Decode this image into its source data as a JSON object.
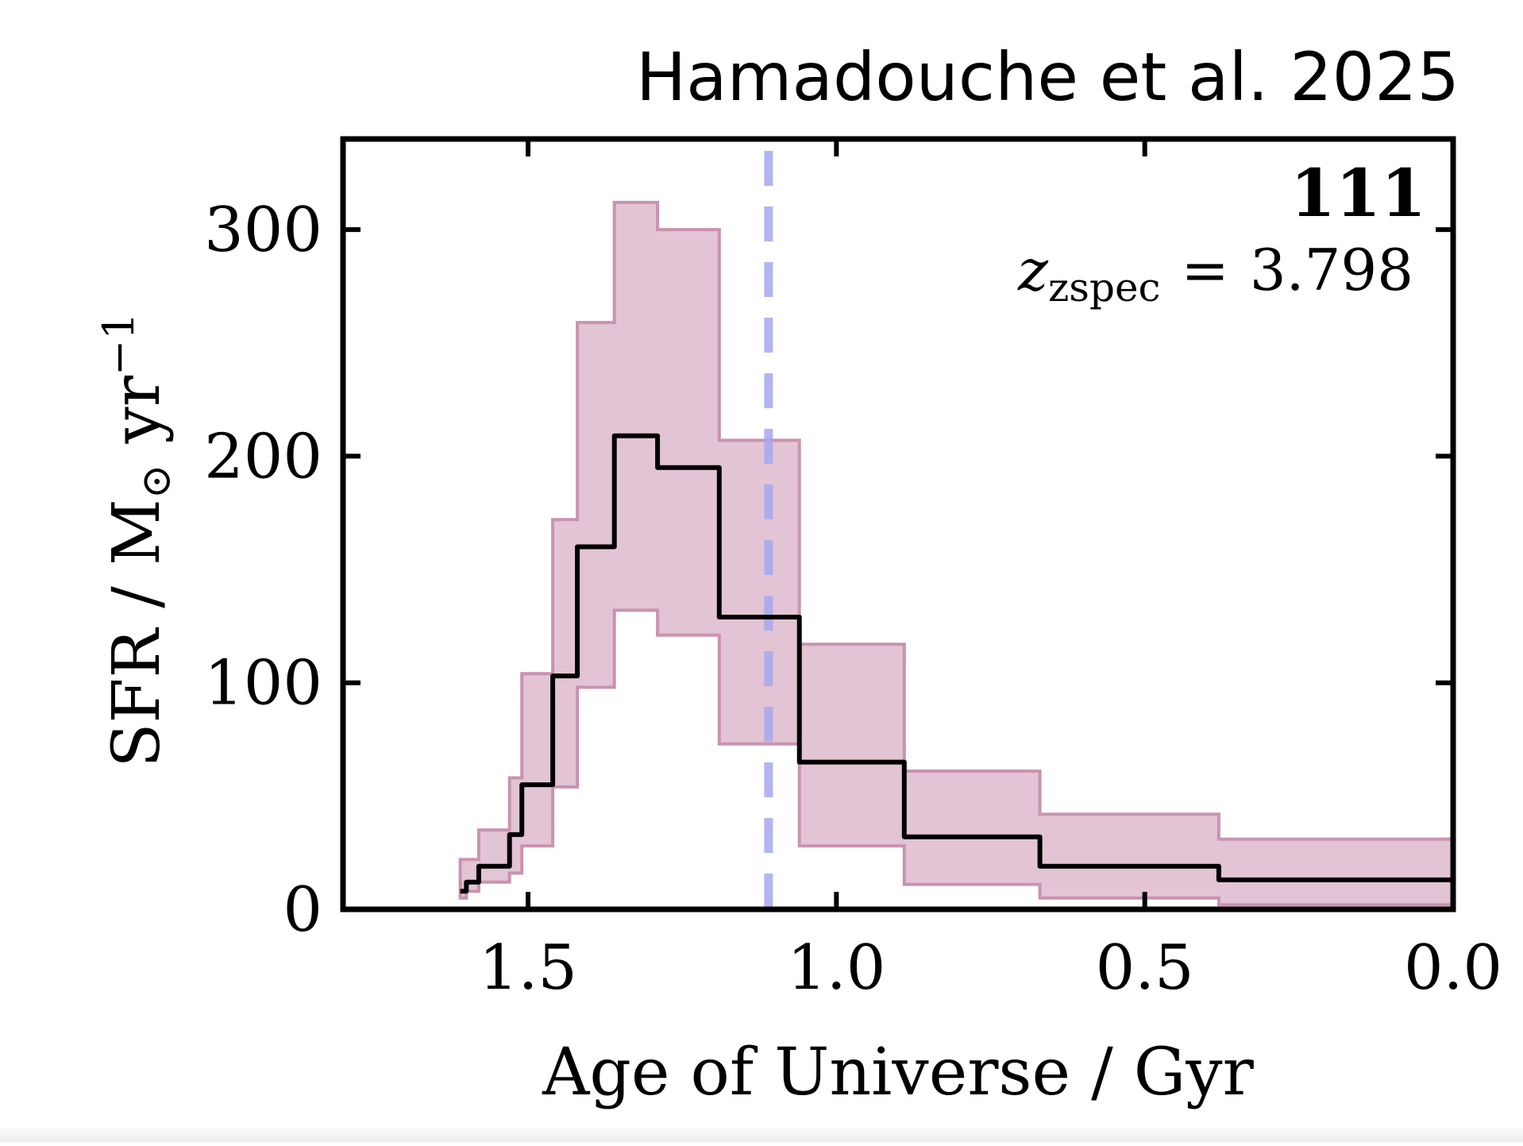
{
  "credit": "Hamadouche et al. 2025",
  "panel_id": "111",
  "redshift_label": {
    "symbol": "z",
    "subscript": "zspec",
    "equals": "=",
    "value": "3.798"
  },
  "colors": {
    "median_line": "#000000",
    "band_fill": "#e2c4d4",
    "band_edge": "#c993af",
    "dashed_line": "#a8a8f0",
    "axes": "#000000"
  },
  "chart_data": {
    "type": "line",
    "title": "",
    "xlabel": "Age of Universe / Gyr",
    "ylabel": {
      "main": "SFR / M",
      "sun_symbol": "⊙",
      "unit": " yr",
      "exponent": "−1"
    },
    "xlim": [
      1.8,
      0.0
    ],
    "ylim": [
      0,
      340
    ],
    "x_direction": "reversed",
    "xticks": [
      1.5,
      1.0,
      0.5,
      0.0
    ],
    "xtick_labels": [
      "1.5",
      "1.0",
      "0.5",
      "0.0"
    ],
    "yticks": [
      0,
      100,
      200,
      300
    ],
    "ytick_labels": [
      "0",
      "100",
      "200",
      "300"
    ],
    "grid": false,
    "steps": [
      {
        "x0": 1.61,
        "x1": 1.6,
        "median": 8,
        "lower": 5,
        "upper": 22
      },
      {
        "x0": 1.6,
        "x1": 1.58,
        "median": 12,
        "lower": 8,
        "upper": 22
      },
      {
        "x0": 1.58,
        "x1": 1.53,
        "median": 19,
        "lower": 12,
        "upper": 35
      },
      {
        "x0": 1.53,
        "x1": 1.51,
        "median": 33,
        "lower": 16,
        "upper": 58
      },
      {
        "x0": 1.51,
        "x1": 1.46,
        "median": 55,
        "lower": 28,
        "upper": 104
      },
      {
        "x0": 1.46,
        "x1": 1.42,
        "median": 103,
        "lower": 54,
        "upper": 172
      },
      {
        "x0": 1.42,
        "x1": 1.36,
        "median": 160,
        "lower": 98,
        "upper": 259
      },
      {
        "x0": 1.36,
        "x1": 1.29,
        "median": 209,
        "lower": 132,
        "upper": 312
      },
      {
        "x0": 1.29,
        "x1": 1.19,
        "median": 195,
        "lower": 121,
        "upper": 300
      },
      {
        "x0": 1.19,
        "x1": 1.06,
        "median": 129,
        "lower": 73,
        "upper": 207
      },
      {
        "x0": 1.06,
        "x1": 0.89,
        "median": 65,
        "lower": 28,
        "upper": 117
      },
      {
        "x0": 0.89,
        "x1": 0.67,
        "median": 32,
        "lower": 11,
        "upper": 61
      },
      {
        "x0": 0.67,
        "x1": 0.38,
        "median": 19,
        "lower": 5,
        "upper": 42
      },
      {
        "x0": 0.38,
        "x1": 0.0,
        "median": 13,
        "lower": 2,
        "upper": 31
      }
    ],
    "series": [
      {
        "name": "median SFR",
        "style": "step"
      },
      {
        "name": "uncertainty band",
        "style": "fill"
      }
    ],
    "reference_line": {
      "x": 1.11,
      "style": "dashed"
    }
  }
}
